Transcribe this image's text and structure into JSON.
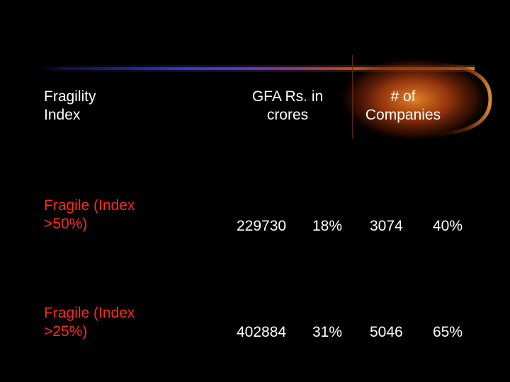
{
  "header": {
    "col1": [
      "Fragility",
      "Index"
    ],
    "col2": [
      "GFA Rs. in",
      "crores"
    ],
    "col3": [
      "# of",
      "Companies"
    ]
  },
  "rows": [
    {
      "label": [
        "Fragile (Index",
        ">50%)"
      ],
      "gfa": "229730",
      "gfa_pct": "18%",
      "companies": "3074",
      "companies_pct": "40%"
    },
    {
      "label": [
        "Fragile (Index",
        ">25%)"
      ],
      "gfa": "402884",
      "gfa_pct": "31%",
      "companies": "5046",
      "companies_pct": "65%"
    }
  ],
  "colors": {
    "background": "#000000",
    "header_text": "#ffffff",
    "row_label": "#ff2a1a",
    "glow_blue": "#3b3bd6",
    "glow_orange": "#e8731a"
  }
}
